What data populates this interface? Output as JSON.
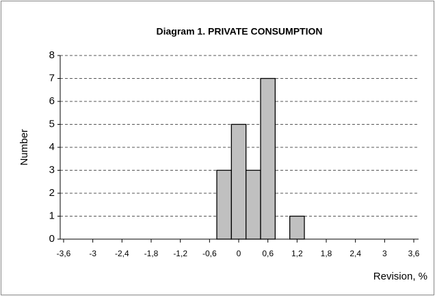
{
  "chart_data": {
    "type": "histogram",
    "title": "Diagram 1.   PRIVATE CONSUMPTION",
    "x_label": "Revision, %",
    "y_label": "Number",
    "bins": [
      -0.45,
      -0.15,
      0.15,
      0.45,
      0.75,
      1.05,
      1.35
    ],
    "values": [
      3,
      5,
      3,
      7,
      0,
      1
    ],
    "color": "#c0c0c0",
    "xlim": [
      -3.6,
      3.6
    ],
    "xticks": [
      {
        "value": -3.6,
        "label": "-3,6"
      },
      -3,
      {
        "value": -2.4,
        "label": "-2,4"
      },
      {
        "value": -1.8,
        "label": "-1,8"
      },
      {
        "value": -1.2,
        "label": "-1,2"
      },
      {
        "value": -0.6,
        "label": "-0,6"
      },
      0,
      {
        "value": 0.6,
        "label": "0,6"
      },
      {
        "value": 1.2,
        "label": "1,2"
      },
      {
        "value": 1.8,
        "label": "1,8"
      },
      {
        "value": 2.4,
        "label": "2,4"
      },
      3,
      {
        "value": 3.6,
        "label": "3,6"
      }
    ],
    "ylim": [
      0,
      8
    ],
    "yticks": [
      0,
      1,
      2,
      3,
      4,
      5,
      6,
      7,
      8
    ],
    "grid": true
  }
}
